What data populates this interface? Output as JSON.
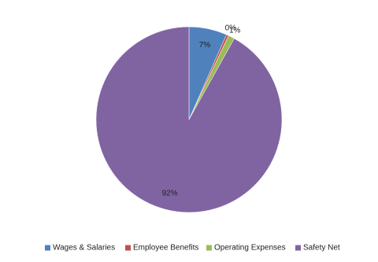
{
  "chart_data": {
    "type": "pie",
    "categories": [
      "Wages & Salaries",
      "Employee Benefits",
      "Operating Expenses",
      "Safety Net"
    ],
    "values": [
      6.6,
      0.4,
      1.1,
      91.9
    ],
    "value_labels": [
      "7%",
      "0%",
      "1%",
      "92%"
    ],
    "colors": [
      "#4f81bd",
      "#c0504d",
      "#9bbb59",
      "#8064a2"
    ],
    "legend": "bottom"
  }
}
